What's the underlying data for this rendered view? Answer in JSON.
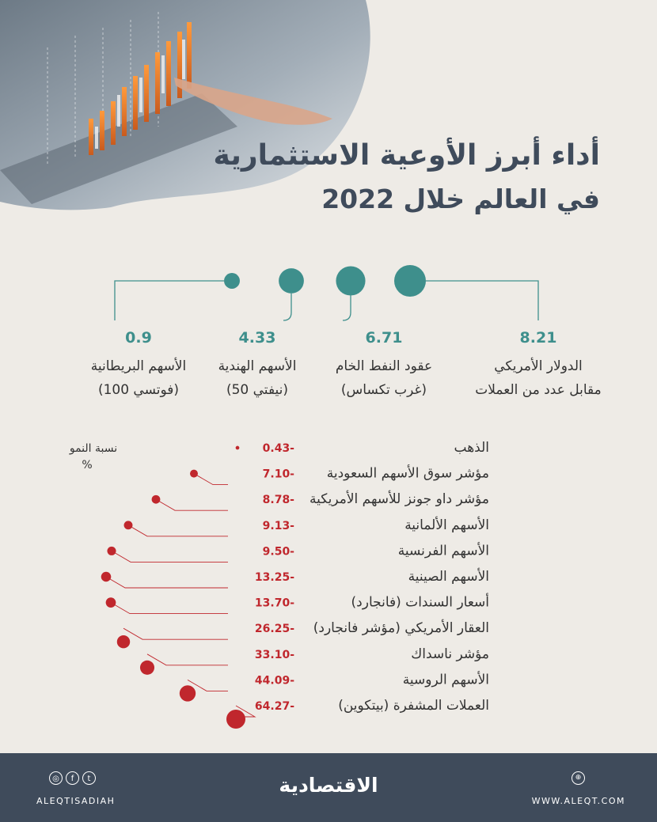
{
  "header": {
    "title_line1": "أداء أبرز الأوعية الاستثمارية",
    "title_line2": "في العالم خلال 2022"
  },
  "colors": {
    "positive": "#3e8f8c",
    "negative": "#c0272d",
    "title": "#3f4b5b",
    "footer_bg": "#3f4b5b",
    "background": "#eeebe6"
  },
  "chart_data": [
    {
      "type": "bubble",
      "title": "أداء أبرز الأوعية الاستثمارية في العالم خلال 2022",
      "unit": "%",
      "items": [
        {
          "label": "الدولار الأمريكي",
          "sublabel": "مقابل عدد من العملات",
          "value": 8.21,
          "display": "8.21"
        },
        {
          "label": "عقود النفط الخام",
          "sublabel": "(غرب تكساس)",
          "value": 6.71,
          "display": "6.71"
        },
        {
          "label": "الأسهم الهندية",
          "sublabel": "(نيفتي 50)",
          "value": 4.33,
          "display": "4.33"
        },
        {
          "label": "الأسهم البريطانية",
          "sublabel": "(فوتسي 100)",
          "value": 0.9,
          "display": "0.9"
        }
      ]
    },
    {
      "type": "bubble",
      "axis_label": "نسبة النمو",
      "unit": "%",
      "items": [
        {
          "label": "الذهب",
          "value": -0.43,
          "display": "0.43-"
        },
        {
          "label": "مؤشر سوق الأسهم السعودية",
          "value": -7.1,
          "display": "7.10-"
        },
        {
          "label": "مؤشر داو جونز للأسهم الأمريكية",
          "value": -8.78,
          "display": "8.78-"
        },
        {
          "label": "الأسهم الألمانية",
          "value": -9.13,
          "display": "9.13-"
        },
        {
          "label": "الأسهم الفرنسية",
          "value": -9.5,
          "display": "9.50-"
        },
        {
          "label": "الأسهم الصينية",
          "value": -13.25,
          "display": "13.25-"
        },
        {
          "label": "أسعار السندات (فانجارد)",
          "value": -13.7,
          "display": "13.70-"
        },
        {
          "label": "العقار الأمريكي (مؤشر فانجارد)",
          "value": -26.25,
          "display": "26.25-"
        },
        {
          "label": "مؤشر ناسداك",
          "value": -33.1,
          "display": "33.10-"
        },
        {
          "label": "الأسهم الروسية",
          "value": -44.09,
          "display": "44.09-"
        },
        {
          "label": "العملات المشفرة (بيتكوين)",
          "value": -64.27,
          "display": "64.27-"
        }
      ]
    }
  ],
  "footer": {
    "social_icons": [
      "instagram-icon",
      "facebook-icon",
      "twitter-icon"
    ],
    "handle": "ALEQTISADIAH",
    "logo": "الاقتصادية",
    "web_icon": "globe-icon",
    "website": "WWW.ALEQT.COM"
  }
}
